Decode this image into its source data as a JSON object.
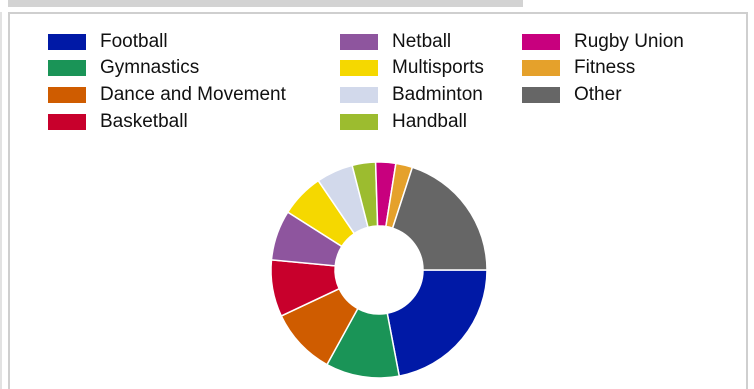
{
  "chart_data": {
    "type": "pie",
    "donut": true,
    "legend_position": "top",
    "categories": [
      "Football",
      "Gymnastics",
      "Dance and Movement",
      "Basketball",
      "Netball",
      "Multisports",
      "Badminton",
      "Handball",
      "Rugby Union",
      "Fitness",
      "Other"
    ],
    "values": [
      22,
      11,
      10,
      8.5,
      7.5,
      6.5,
      5.5,
      3.5,
      3,
      2.5,
      20
    ],
    "colors": [
      "#0019a6",
      "#1a9457",
      "#cf5c00",
      "#c8002c",
      "#8e559e",
      "#f5d800",
      "#d2d9eb",
      "#9cbc2f",
      "#c8007e",
      "#e5a12b",
      "#666666"
    ]
  }
}
